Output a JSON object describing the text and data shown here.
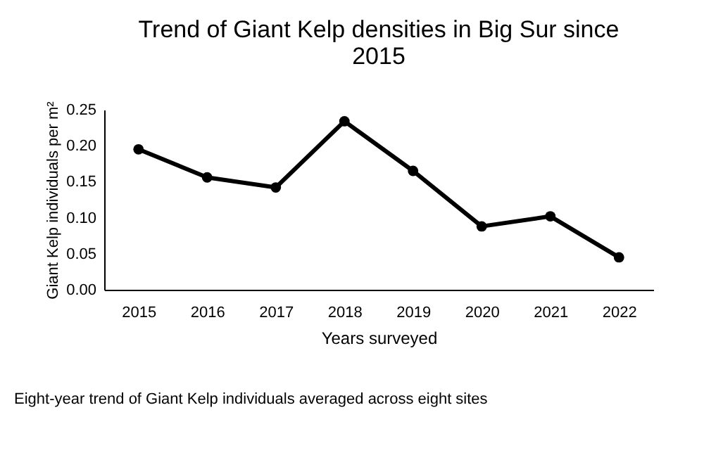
{
  "chart_data": {
    "type": "line",
    "title": "Trend of Giant Kelp densities in Big Sur since 2015",
    "xlabel": "Years surveyed",
    "ylabel": "Giant Kelp individuals per m²",
    "categories": [
      "2015",
      "2016",
      "2017",
      "2018",
      "2019",
      "2020",
      "2021",
      "2022"
    ],
    "series": [
      {
        "color": "#000000",
        "values": [
          0.195,
          0.156,
          0.142,
          0.234,
          0.165,
          0.088,
          0.102,
          0.045
        ]
      }
    ],
    "ylim": [
      0,
      0.25
    ],
    "yticks": [
      {
        "value": 0,
        "label": "0.00"
      },
      {
        "value": 0.05,
        "label": "0.05"
      },
      {
        "value": 0.1,
        "label": "0.10"
      },
      {
        "value": 0.15,
        "label": "0.15"
      },
      {
        "value": 0.2,
        "label": "0.20"
      },
      {
        "value": 0.25,
        "label": "0.25"
      }
    ],
    "marker": "circle",
    "line_style": "solid",
    "grid": false,
    "annotations": [
      "Eight-year trend of Giant Kelp individuals averaged across eight sites"
    ]
  }
}
